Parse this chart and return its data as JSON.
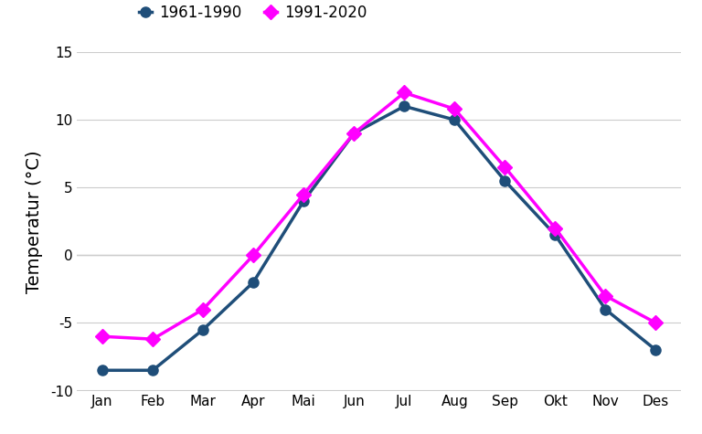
{
  "months": [
    "Jan",
    "Feb",
    "Mar",
    "Apr",
    "Mai",
    "Jun",
    "Jul",
    "Aug",
    "Sep",
    "Okt",
    "Nov",
    "Des"
  ],
  "series_1961": [
    -8.5,
    -8.5,
    -5.5,
    -2.0,
    4.0,
    9.0,
    11.0,
    10.0,
    5.5,
    1.5,
    -4.0,
    -7.0
  ],
  "series_1991": [
    -6.0,
    -6.2,
    -4.0,
    0.0,
    4.5,
    9.0,
    12.0,
    10.8,
    6.5,
    2.0,
    -3.0,
    -5.0
  ],
  "color_1961": "#1f4e79",
  "color_1991": "#ff00ff",
  "label_1961": "1961-1990",
  "label_1991": "1991-2020",
  "ylabel": "Temperatur (°C)",
  "ylim": [
    -10,
    15
  ],
  "yticks": [
    -10,
    -5,
    0,
    5,
    10,
    15
  ],
  "background_color": "#ffffff",
  "grid_color": "#cccccc",
  "linewidth": 2.5,
  "markersize_circle": 8,
  "markersize_diamond": 8,
  "tick_fontsize": 11,
  "ylabel_fontsize": 14,
  "legend_fontsize": 12
}
